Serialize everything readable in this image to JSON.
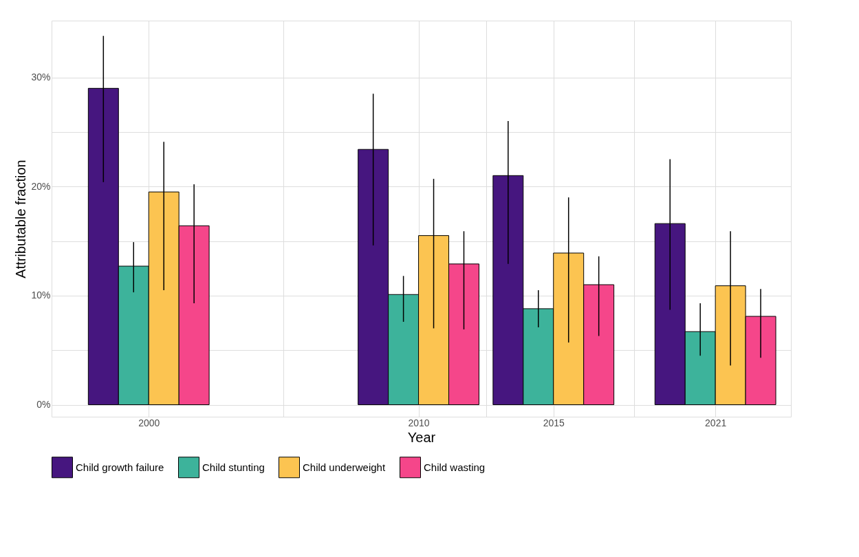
{
  "chart_data": {
    "type": "bar",
    "xlabel": "Year",
    "ylabel": "Attributable fraction",
    "x": [
      2000,
      2010,
      2015,
      2021
    ],
    "xlim": [
      1996.4,
      2023.8
    ],
    "xticks": [
      2000,
      {
        "value": 2005,
        "label": null
      },
      2010,
      {
        "value": 2012.5,
        "label": null
      },
      2015,
      {
        "value": 2018,
        "label": null
      },
      2021
    ],
    "ylim": [
      -1.1,
      35.2
    ],
    "yticks": [
      {
        "value": 0,
        "label": "0%"
      },
      {
        "value": 5,
        "label": null
      },
      {
        "value": 10,
        "label": "10%"
      },
      {
        "value": 15,
        "label": null
      },
      {
        "value": 20,
        "label": "20%"
      },
      {
        "value": 25,
        "label": null
      },
      {
        "value": 30,
        "label": "30%"
      }
    ],
    "grid": true,
    "legend": "bottom",
    "series": [
      {
        "name": "Child growth failure",
        "color": "#46167f",
        "values": [
          29.0,
          23.4,
          21.0,
          16.6
        ],
        "errors": [
          [
            20.4,
            33.8
          ],
          [
            14.6,
            28.5
          ],
          [
            12.9,
            26.0
          ],
          [
            8.7,
            22.5
          ]
        ]
      },
      {
        "name": "Child stunting",
        "color": "#3db39b",
        "values": [
          12.7,
          10.1,
          8.8,
          6.7
        ],
        "errors": [
          [
            10.3,
            14.9
          ],
          [
            7.6,
            11.8
          ],
          [
            7.1,
            10.5
          ],
          [
            4.5,
            9.3
          ]
        ]
      },
      {
        "name": "Child underweight",
        "color": "#fcc451",
        "values": [
          19.5,
          15.5,
          13.9,
          10.9
        ],
        "errors": [
          [
            10.5,
            24.1
          ],
          [
            7.0,
            20.7
          ],
          [
            5.7,
            19.0
          ],
          [
            3.6,
            15.9
          ]
        ]
      },
      {
        "name": "Child wasting",
        "color": "#f5468a",
        "values": [
          16.4,
          12.9,
          11.0,
          8.1
        ],
        "errors": [
          [
            9.3,
            20.2
          ],
          [
            6.9,
            15.9
          ],
          [
            6.3,
            13.6
          ],
          [
            4.3,
            10.6
          ]
        ]
      }
    ]
  }
}
